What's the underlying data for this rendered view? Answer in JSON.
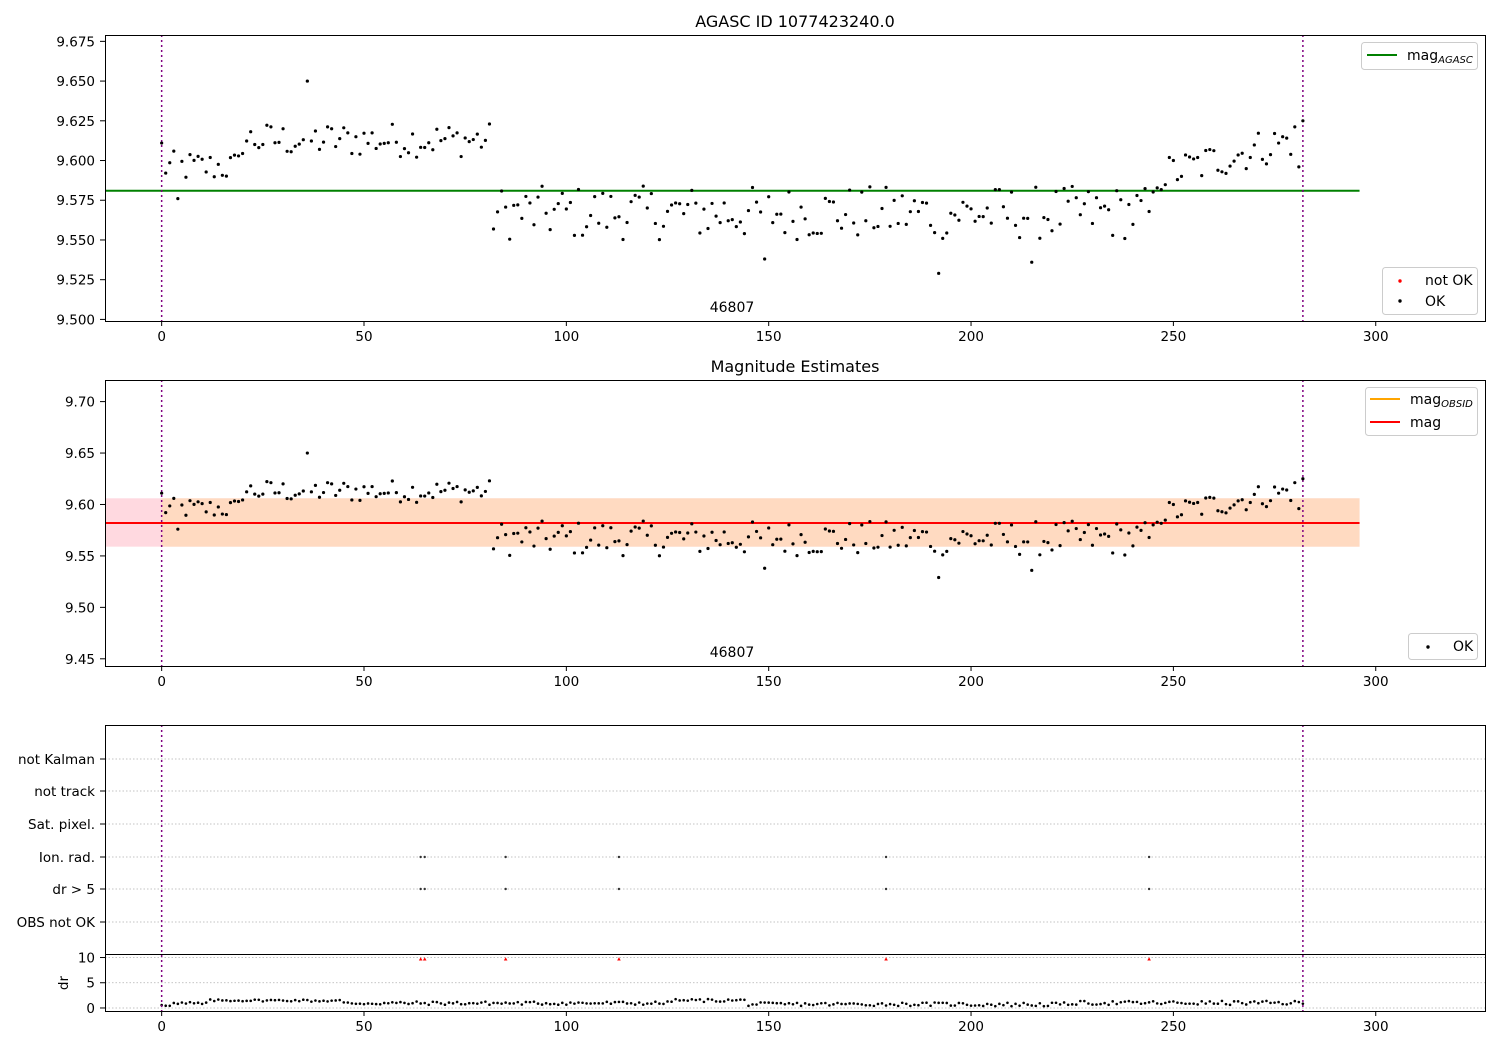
{
  "colors": {
    "ok": "#000000",
    "not_ok": "#ff0000",
    "mag_agasc": "#008000",
    "mag_obsid": "#ffa500",
    "mag": "#ff0000",
    "band_outer": "#ffc0cb",
    "band_inner": "#ffdab9",
    "boundary": "#800080",
    "grid": "#b0b0b0"
  },
  "chart_data": [
    {
      "type": "scatter",
      "title": "AGASC ID 1077423240.0",
      "xlim": [
        -14,
        327
      ],
      "ylim": [
        9.499,
        9.679
      ],
      "xticks": [
        0,
        50,
        100,
        150,
        200,
        250,
        300
      ],
      "yticks": [
        "9.500",
        "9.525",
        "9.550",
        "9.575",
        "9.600",
        "9.625",
        "9.650",
        "9.675"
      ],
      "obsid": "46807",
      "obs_boundaries": [
        0,
        282
      ],
      "mag_agasc": 9.581,
      "line_x_range": [
        0,
        296
      ],
      "legend_upper": [
        {
          "label_base": "mag",
          "label_sub": "AGASC",
          "style": "line",
          "color": "#008000"
        }
      ],
      "legend_lower": [
        {
          "label": "not OK",
          "style": "dot",
          "color": "#ff0000"
        },
        {
          "label": "OK",
          "style": "dot",
          "color": "#000000"
        }
      ]
    },
    {
      "type": "scatter",
      "title": "Magnitude Estimates",
      "xlim": [
        -14,
        327
      ],
      "ylim": [
        9.443,
        9.721
      ],
      "xticks": [
        0,
        50,
        100,
        150,
        200,
        250,
        300
      ],
      "yticks": [
        "9.45",
        "9.50",
        "9.55",
        "9.60",
        "9.65",
        "9.70"
      ],
      "obsid": "46807",
      "obs_boundaries": [
        0,
        282
      ],
      "mag": 9.582,
      "mag_obsid": 9.582,
      "band_outer": [
        9.559,
        9.606
      ],
      "band_inner": [
        9.559,
        9.606
      ],
      "line_x_range": [
        0,
        296
      ],
      "legend_upper": [
        {
          "label_base": "mag",
          "label_sub": "OBSID",
          "style": "line",
          "color": "#ffa500"
        },
        {
          "label_base": "mag",
          "label_sub": "",
          "style": "line",
          "color": "#ff0000"
        }
      ],
      "legend_lower": [
        {
          "label": "OK",
          "style": "dot",
          "color": "#000000"
        }
      ]
    },
    {
      "type": "scatter",
      "title": "",
      "xlim": [
        -14,
        327
      ],
      "xticks": [
        0,
        50,
        100,
        150,
        200,
        250,
        300
      ],
      "flag_labels": [
        "not Kalman",
        "not track",
        "Sat. pixel.",
        "Ion. rad.",
        "dr > 5",
        "OBS not OK"
      ],
      "flags": {
        "Ion. rad.": [
          64,
          65,
          85,
          113,
          179,
          244
        ],
        "dr > 5": [
          64,
          65,
          85,
          113,
          179,
          244
        ]
      },
      "dr_ylabel": "dr",
      "dr_yticks": [
        "0",
        "5",
        "10"
      ],
      "dr_ylim": [
        -0.6,
        10.5
      ],
      "dr_high_x": [
        64,
        65,
        85,
        113,
        179,
        244
      ],
      "dr_high_value": 9.7,
      "obs_boundaries": [
        0,
        282
      ]
    }
  ]
}
